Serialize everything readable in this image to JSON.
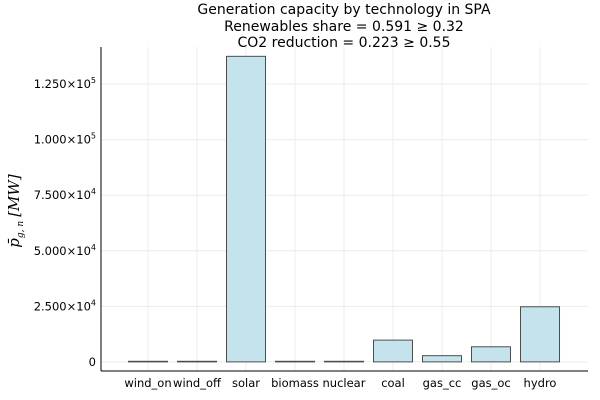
{
  "chart_data": {
    "type": "bar",
    "title_lines": [
      "Generation capacity by technology in SPA",
      "Renewables share = 0.591 ≥ 0.32",
      "CO2 reduction = 0.223 ≥ 0.55"
    ],
    "ylabel": {
      "symbol": "p̄",
      "subscript": "g, n",
      "unit": "[MW]"
    },
    "xlabel": "",
    "categories": [
      "wind_on",
      "wind_off",
      "solar",
      "biomass",
      "nuclear",
      "coal",
      "gas_cc",
      "gas_oc",
      "hydro"
    ],
    "values": [
      0,
      0,
      137500,
      0,
      0,
      9800,
      2800,
      6800,
      24800
    ],
    "ylim": [
      -4100,
      141700
    ],
    "yticks": [
      {
        "value": 0,
        "mantissa": "0",
        "exponent": ""
      },
      {
        "value": 25000,
        "mantissa": "2.500×10",
        "exponent": "4"
      },
      {
        "value": 50000,
        "mantissa": "5.000×10",
        "exponent": "4"
      },
      {
        "value": 75000,
        "mantissa": "7.500×10",
        "exponent": "4"
      },
      {
        "value": 100000,
        "mantissa": "1.000×10",
        "exponent": "5"
      },
      {
        "value": 125000,
        "mantissa": "1.250×10",
        "exponent": "5"
      }
    ],
    "bar_color": "#c5e3ec",
    "bar_edge_color": "#4d4d4d",
    "grid": true,
    "legend": "none"
  }
}
